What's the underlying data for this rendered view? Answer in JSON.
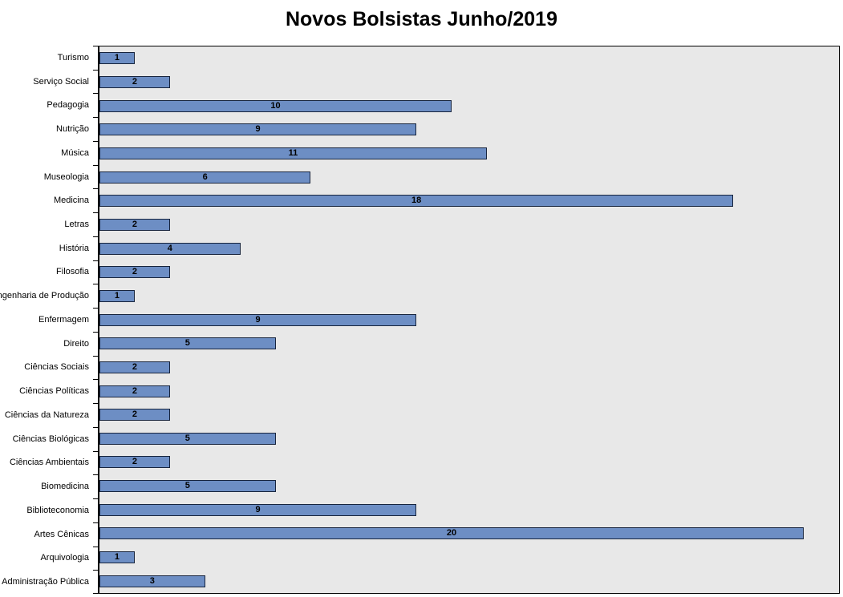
{
  "chart_data": {
    "type": "bar",
    "orientation": "horizontal",
    "title": "Novos Bolsistas Junho/2019",
    "categories": [
      "Turismo",
      "Serviço Social",
      "Pedagogia",
      "Nutrição",
      "Música",
      "Museologia",
      "Medicina",
      "Letras",
      "História",
      "Filosofia",
      "Engenharia de Produção",
      "Enfermagem",
      "Direito",
      "Ciências Sociais",
      "Ciências Políticas",
      "Ciências da Natureza",
      "Ciências Biológicas",
      "Ciências Ambientais",
      "Biomedicina",
      "Biblioteconomia",
      "Artes Cênicas",
      "Arquivologia",
      "Administração Pública"
    ],
    "values": [
      1,
      2,
      10,
      9,
      11,
      6,
      18,
      2,
      4,
      2,
      1,
      9,
      5,
      2,
      2,
      2,
      5,
      2,
      5,
      9,
      20,
      1,
      3
    ],
    "xlabel": "",
    "ylabel": "",
    "xlim": [
      0,
      21
    ],
    "data_labels": true,
    "data_label_position": "center",
    "grid": false,
    "legend": false,
    "colors": {
      "bar_fill": "#6d8ec4",
      "bar_border": "#17243d",
      "plot_bg": "#e8e8e8",
      "plot_border": "#000000",
      "page_bg": "#ffffff",
      "title_color": "#000000",
      "label_color": "#000000"
    }
  }
}
